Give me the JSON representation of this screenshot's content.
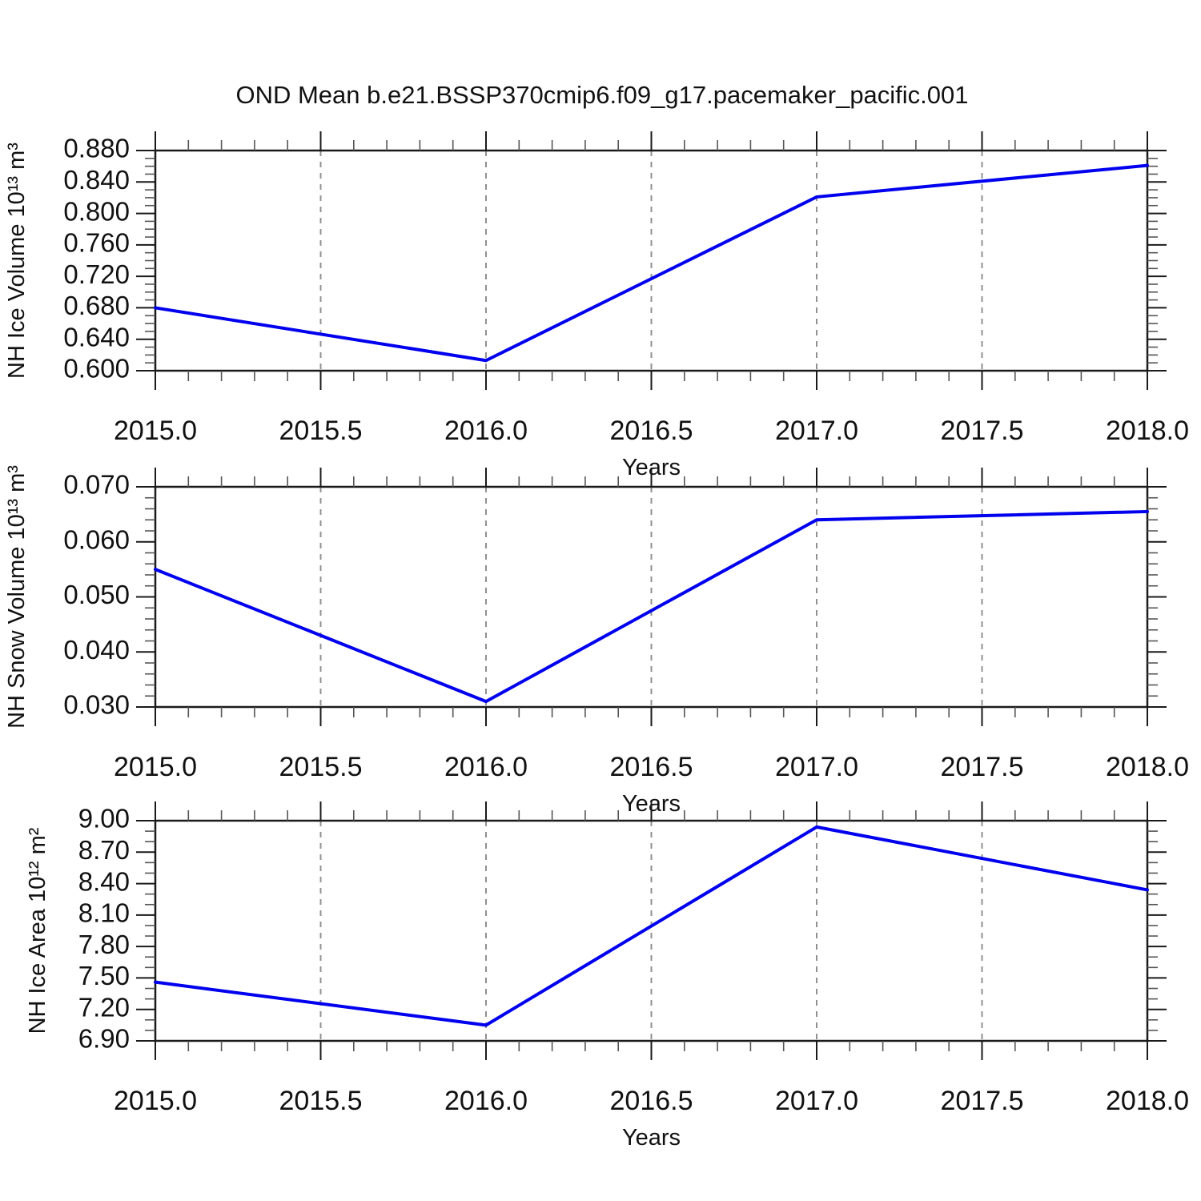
{
  "title": "OND Mean b.e21.BSSP370cmip6.f09_g17.pacemaker_pacific.001",
  "colors": {
    "line": "#0000ee",
    "axis": "#1a1a1a",
    "minor_tick": "#555555",
    "grid": "#909090",
    "text": "#111111"
  },
  "chart_data": [
    {
      "type": "line",
      "panel": "top",
      "ylabel": "NH Ice Volume 10¹³ m³",
      "xlabel": "Years",
      "x": [
        2015.0,
        2016.0,
        2017.0,
        2018.0
      ],
      "series": [
        {
          "name": "NH Ice Volume",
          "values": [
            0.68,
            0.613,
            0.821,
            0.861
          ]
        }
      ],
      "xlim": [
        2015.0,
        2018.0
      ],
      "ylim": [
        0.6,
        0.88
      ],
      "xtick_values": [
        2015.0,
        2015.5,
        2016.0,
        2016.5,
        2017.0,
        2017.5,
        2018.0
      ],
      "xtick_labels": [
        "2015.0",
        "2015.5",
        "2016.0",
        "2016.5",
        "2017.0",
        "2017.5",
        "2018.0"
      ],
      "x_minor_step": 0.1,
      "ytick_values": [
        0.6,
        0.64,
        0.68,
        0.72,
        0.76,
        0.8,
        0.84,
        0.88
      ],
      "ytick_labels": [
        "0.600",
        "0.640",
        "0.680",
        "0.720",
        "0.760",
        "0.800",
        "0.840",
        "0.880"
      ],
      "y_minor_step": 0.01,
      "grid": "vertical dashed at interior x majors",
      "legend": "none"
    },
    {
      "type": "line",
      "panel": "middle",
      "ylabel": "NH Snow Volume 10¹³ m³",
      "xlabel": "Years",
      "x": [
        2015.0,
        2016.0,
        2017.0,
        2018.0
      ],
      "series": [
        {
          "name": "NH Snow Volume",
          "values": [
            0.055,
            0.031,
            0.064,
            0.0655
          ]
        }
      ],
      "xlim": [
        2015.0,
        2018.0
      ],
      "ylim": [
        0.03,
        0.07
      ],
      "xtick_values": [
        2015.0,
        2015.5,
        2016.0,
        2016.5,
        2017.0,
        2017.5,
        2018.0
      ],
      "xtick_labels": [
        "2015.0",
        "2015.5",
        "2016.0",
        "2016.5",
        "2017.0",
        "2017.5",
        "2018.0"
      ],
      "x_minor_step": 0.1,
      "ytick_values": [
        0.03,
        0.04,
        0.05,
        0.06,
        0.07
      ],
      "ytick_labels": [
        "0.030",
        "0.040",
        "0.050",
        "0.060",
        "0.070"
      ],
      "y_minor_step": 0.002,
      "grid": "vertical dashed at interior x majors",
      "legend": "none"
    },
    {
      "type": "line",
      "panel": "bottom",
      "ylabel": "NH Ice Area 10¹² m²",
      "xlabel": "Years",
      "x": [
        2015.0,
        2016.0,
        2017.0,
        2018.0
      ],
      "series": [
        {
          "name": "NH Ice Area",
          "values": [
            7.46,
            7.05,
            8.94,
            8.34
          ]
        }
      ],
      "xlim": [
        2015.0,
        2018.0
      ],
      "ylim": [
        6.9,
        9.0
      ],
      "xtick_values": [
        2015.0,
        2015.5,
        2016.0,
        2016.5,
        2017.0,
        2017.5,
        2018.0
      ],
      "xtick_labels": [
        "2015.0",
        "2015.5",
        "2016.0",
        "2016.5",
        "2017.0",
        "2017.5",
        "2018.0"
      ],
      "x_minor_step": 0.1,
      "ytick_values": [
        6.9,
        7.2,
        7.5,
        7.8,
        8.1,
        8.4,
        8.7,
        9.0
      ],
      "ytick_labels": [
        "6.90",
        "7.20",
        "7.50",
        "7.80",
        "8.10",
        "8.40",
        "8.70",
        "9.00"
      ],
      "y_minor_step": 0.1,
      "grid": "vertical dashed at interior x majors",
      "legend": "none"
    }
  ]
}
